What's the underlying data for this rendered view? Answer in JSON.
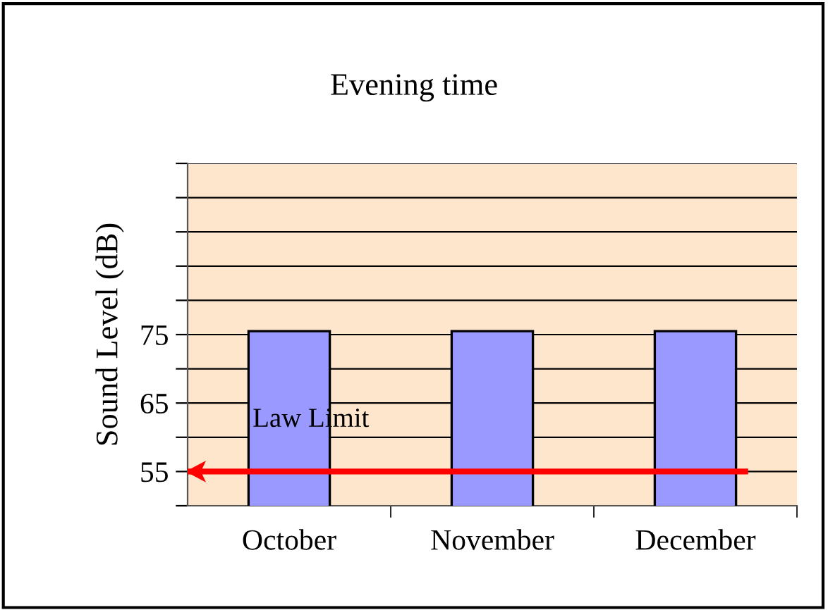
{
  "chart_data": {
    "type": "bar",
    "title": "Evening time",
    "ylabel": "Sound Level (dB)",
    "categories": [
      "October",
      "November",
      "December"
    ],
    "values": [
      75.5,
      75.5,
      75.5
    ],
    "color": "#9999ff",
    "ylim": [
      50,
      100
    ],
    "yticks": [
      {
        "value": 50,
        "label": null
      },
      55,
      {
        "value": 60,
        "label": null
      },
      65,
      {
        "value": 70,
        "label": null
      },
      75,
      {
        "value": 80,
        "label": null
      },
      {
        "value": 85,
        "label": null
      },
      {
        "value": 90,
        "label": null
      },
      {
        "value": 95,
        "label": null
      },
      {
        "value": 100,
        "label": null
      }
    ],
    "grid": "y",
    "ref_lines": [
      {
        "axis": "y",
        "value": 55,
        "label": "Law Limit",
        "color": "#ff0000"
      }
    ]
  }
}
